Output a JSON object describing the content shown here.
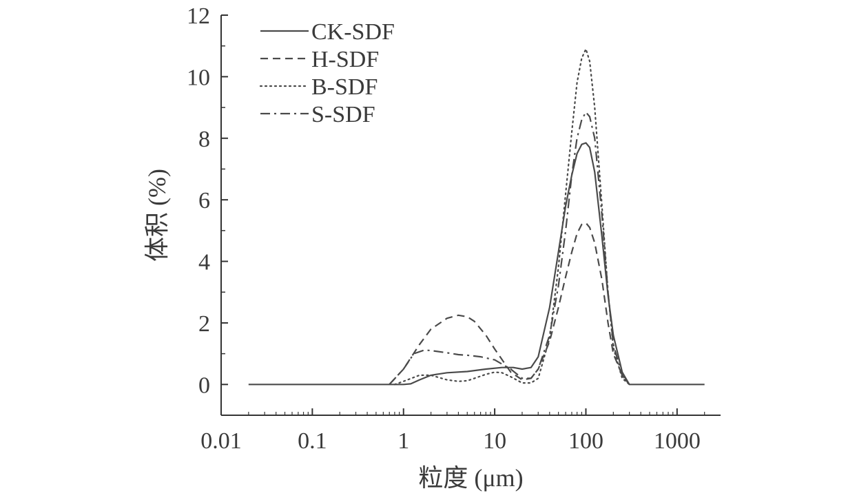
{
  "chart_data": {
    "type": "line",
    "title": "",
    "xlabel": "粒度 (μm)",
    "ylabel": "体积 (%)",
    "xscale": "log",
    "xlim": [
      0.01,
      3000
    ],
    "ylim": [
      -1,
      12
    ],
    "x_ticks": [
      0.01,
      0.1,
      1,
      10,
      100,
      1000
    ],
    "x_tick_labels": [
      "0.01",
      "0.1",
      "1",
      "10",
      "100",
      "1000"
    ],
    "y_ticks": [
      0,
      2,
      4,
      6,
      8,
      10,
      12
    ],
    "y_tick_labels": [
      "0",
      "2",
      "4",
      "6",
      "8",
      "10",
      "12"
    ],
    "grid": false,
    "legend_position": "top-left",
    "series": [
      {
        "name": "CK-SDF",
        "style": "solid",
        "color": "#4a4a4a",
        "x": [
          0.02,
          0.1,
          0.5,
          1.0,
          1.2,
          1.5,
          2,
          3,
          5,
          8,
          12,
          16,
          20,
          25,
          30,
          40,
          50,
          60,
          70,
          80,
          90,
          100,
          110,
          125,
          150,
          175,
          200,
          250,
          300,
          2000
        ],
        "y": [
          0,
          0,
          0,
          0,
          0.02,
          0.15,
          0.3,
          0.38,
          0.42,
          0.5,
          0.55,
          0.55,
          0.5,
          0.55,
          0.9,
          2.5,
          4.3,
          5.8,
          6.8,
          7.5,
          7.8,
          7.85,
          7.7,
          6.9,
          4.8,
          2.9,
          1.6,
          0.4,
          0,
          0
        ]
      },
      {
        "name": "H-SDF",
        "style": "dashed",
        "color": "#4a4a4a",
        "x": [
          0.7,
          1,
          1.5,
          2,
          3,
          4,
          5,
          6,
          8,
          10,
          15,
          20,
          25,
          30,
          40,
          50,
          60,
          70,
          80,
          90,
          100,
          110,
          125,
          150,
          175,
          200,
          250,
          300
        ],
        "y": [
          0,
          0.5,
          1.3,
          1.8,
          2.15,
          2.25,
          2.2,
          2.05,
          1.6,
          1.15,
          0.4,
          0.15,
          0.2,
          0.5,
          1.4,
          2.5,
          3.5,
          4.3,
          4.9,
          5.2,
          5.25,
          5.1,
          4.6,
          3.4,
          2.0,
          1.0,
          0.3,
          0
        ]
      },
      {
        "name": "B-SDF",
        "style": "dotted",
        "color": "#4a4a4a",
        "x": [
          0.8,
          1,
          1.5,
          2,
          3,
          4,
          5,
          6,
          8,
          10,
          12,
          15,
          20,
          25,
          30,
          40,
          50,
          60,
          70,
          80,
          90,
          100,
          110,
          125,
          150,
          175,
          200,
          250,
          300
        ],
        "y": [
          0,
          0.1,
          0.3,
          0.3,
          0.15,
          0.1,
          0.12,
          0.2,
          0.33,
          0.4,
          0.38,
          0.25,
          0.05,
          0.05,
          0.2,
          1.5,
          3.8,
          6.2,
          8.2,
          9.8,
          10.6,
          10.9,
          10.5,
          9.0,
          5.8,
          3.0,
          1.2,
          0.2,
          0
        ]
      },
      {
        "name": "S-SDF",
        "style": "dashdot",
        "color": "#4a4a4a",
        "x": [
          0.7,
          1,
          1.3,
          1.7,
          2,
          3,
          4,
          5,
          7,
          10,
          15,
          20,
          25,
          30,
          40,
          50,
          60,
          70,
          80,
          90,
          100,
          110,
          125,
          150,
          175,
          200,
          250,
          300
        ],
        "y": [
          0,
          0.5,
          1.0,
          1.12,
          1.1,
          1.03,
          0.97,
          0.95,
          0.9,
          0.8,
          0.5,
          0.2,
          0.2,
          0.5,
          1.6,
          3.2,
          5.0,
          6.8,
          8.0,
          8.6,
          8.85,
          8.7,
          8.0,
          5.5,
          3.0,
          1.3,
          0.3,
          0
        ]
      }
    ]
  }
}
